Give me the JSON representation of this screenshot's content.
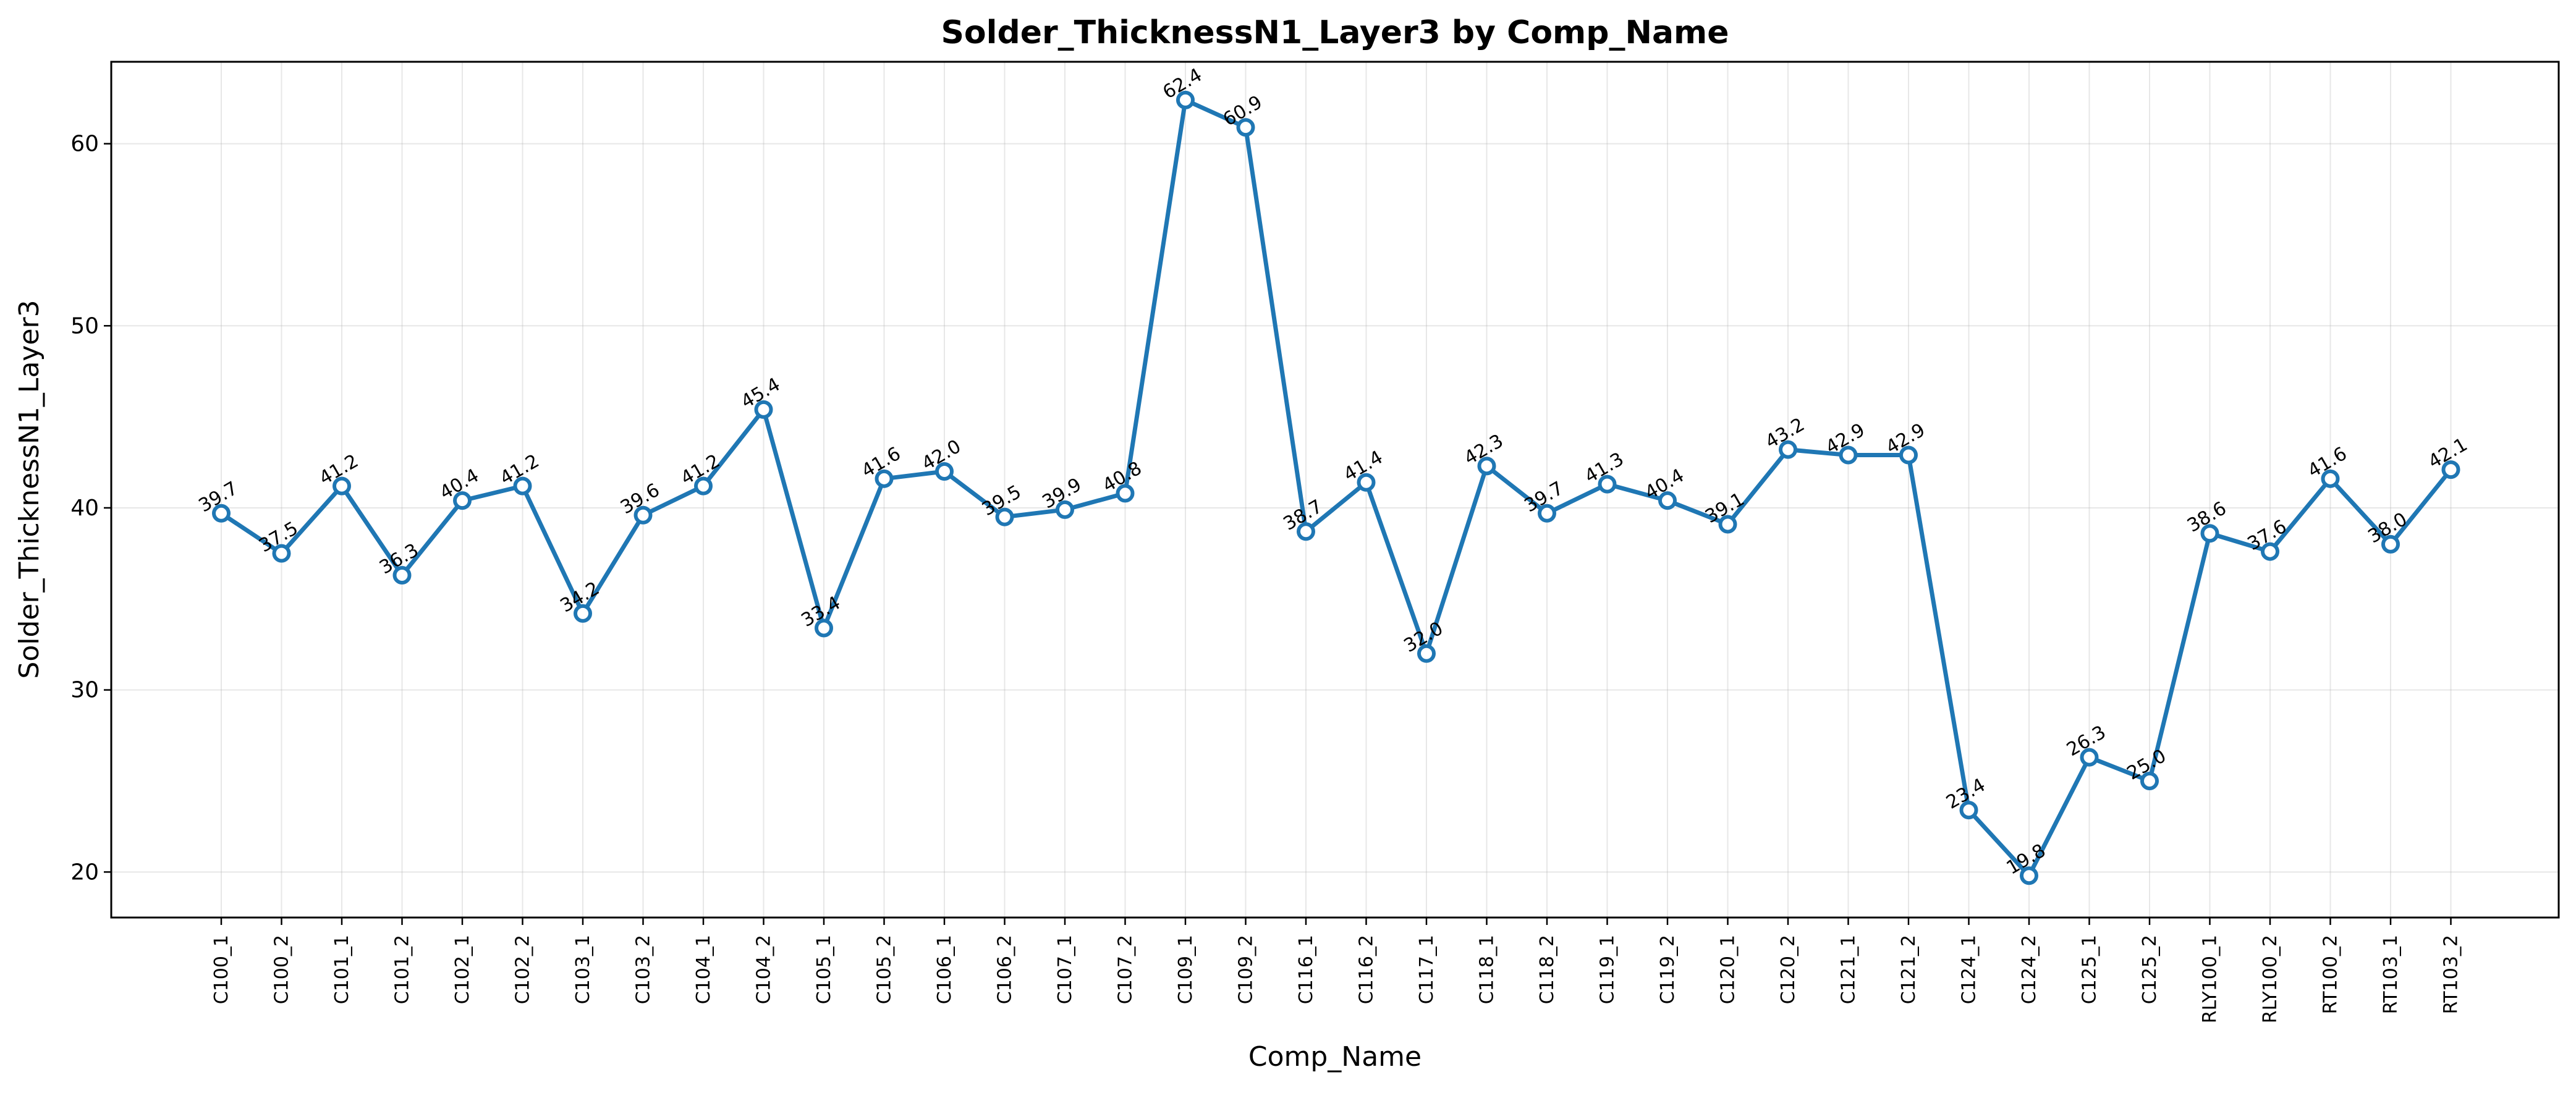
{
  "chart_data": {
    "type": "line",
    "title": "Solder_ThicknessN1_Layer3 by Comp_Name",
    "xlabel": "Comp_Name",
    "ylabel": "Solder_ThicknessN1_Layer3",
    "ylim": [
      17.5,
      64.5
    ],
    "yticks": [
      20,
      30,
      40,
      50,
      60
    ],
    "grid": true,
    "line_color": "#1f77b4",
    "categories": [
      "C100_1",
      "C100_2",
      "C101_1",
      "C101_2",
      "C102_1",
      "C102_2",
      "C103_1",
      "C103_2",
      "C104_1",
      "C104_2",
      "C105_1",
      "C105_2",
      "C106_1",
      "C106_2",
      "C107_1",
      "C107_2",
      "C109_1",
      "C109_2",
      "C116_1",
      "C116_2",
      "C117_1",
      "C118_1",
      "C118_2",
      "C119_1",
      "C119_2",
      "C120_1",
      "C120_2",
      "C121_1",
      "C121_2",
      "C124_1",
      "C124_2",
      "C125_1",
      "C125_2",
      "RLY100_1",
      "RLY100_2",
      "RT100_2",
      "RT103_1",
      "RT103_2"
    ],
    "values": [
      39.7,
      37.5,
      41.2,
      36.3,
      40.4,
      41.2,
      34.2,
      39.6,
      41.2,
      45.4,
      33.4,
      41.6,
      42.0,
      39.5,
      39.9,
      40.8,
      62.4,
      60.9,
      38.7,
      41.4,
      32.0,
      42.3,
      39.7,
      41.3,
      40.4,
      39.1,
      43.2,
      42.9,
      42.9,
      23.4,
      19.8,
      26.3,
      25.0,
      38.6,
      37.6,
      41.6,
      38.0,
      42.1
    ],
    "value_labels": [
      "39.7",
      "37.5",
      "41.2",
      "36.3",
      "40.4",
      "41.2",
      "34.2",
      "39.6",
      "41.2",
      "45.4",
      "33.4",
      "41.6",
      "42.0",
      "39.5",
      "39.9",
      "40.8",
      "62.4",
      "60.9",
      "38.7",
      "41.4",
      "32.0",
      "42.3",
      "39.7",
      "41.3",
      "40.4",
      "39.1",
      "43.2",
      "42.9",
      "42.9",
      "23.4",
      "19.8",
      "26.3",
      "25.0",
      "38.6",
      "37.6",
      "41.6",
      "38.0",
      "42.1"
    ]
  }
}
